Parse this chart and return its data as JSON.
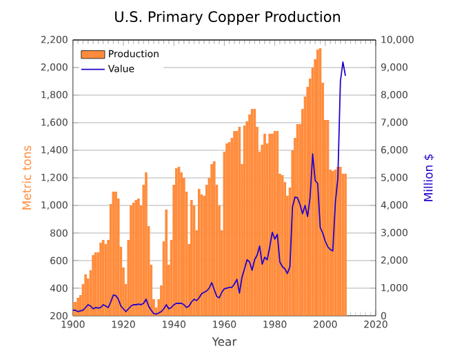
{
  "chart_data": {
    "type": "bar",
    "title": "U.S. Primary Copper Production",
    "xlabel": "Year",
    "ylabel": "Metric tons",
    "y2label": "Million $",
    "x": [
      1900,
      1901,
      1902,
      1903,
      1904,
      1905,
      1906,
      1907,
      1908,
      1909,
      1910,
      1911,
      1912,
      1913,
      1914,
      1915,
      1916,
      1917,
      1918,
      1919,
      1920,
      1921,
      1922,
      1923,
      1924,
      1925,
      1926,
      1927,
      1928,
      1929,
      1930,
      1931,
      1932,
      1933,
      1934,
      1935,
      1936,
      1937,
      1938,
      1939,
      1940,
      1941,
      1942,
      1943,
      1944,
      1945,
      1946,
      1947,
      1948,
      1949,
      1950,
      1951,
      1952,
      1953,
      1954,
      1955,
      1956,
      1957,
      1958,
      1959,
      1960,
      1961,
      1962,
      1963,
      1964,
      1965,
      1966,
      1967,
      1968,
      1969,
      1970,
      1971,
      1972,
      1973,
      1974,
      1975,
      1976,
      1977,
      1978,
      1979,
      1980,
      1981,
      1982,
      1983,
      1984,
      1985,
      1986,
      1987,
      1988,
      1989,
      1990,
      1991,
      1992,
      1993,
      1994,
      1995,
      1996,
      1997,
      1998,
      1999,
      2000,
      2001,
      2002,
      2003,
      2004,
      2005,
      2006,
      2007,
      2008
    ],
    "series": [
      {
        "name": "Production",
        "axis": "y",
        "color": "#ff8c3c",
        "values": [
          300,
          300,
          330,
          350,
          430,
          500,
          470,
          530,
          640,
          660,
          660,
          730,
          750,
          720,
          750,
          1010,
          1100,
          1100,
          1050,
          700,
          550,
          430,
          750,
          1000,
          1020,
          1040,
          1050,
          1000,
          1150,
          1240,
          850,
          570,
          320,
          260,
          320,
          420,
          740,
          970,
          570,
          750,
          1150,
          1270,
          1280,
          1240,
          1200,
          1100,
          720,
          1040,
          1000,
          820,
          1120,
          1080,
          1070,
          1150,
          1200,
          1300,
          1320,
          1150,
          1000,
          820,
          1390,
          1450,
          1460,
          1490,
          1540,
          1540,
          1570,
          1300,
          1580,
          1610,
          1660,
          1700,
          1700,
          1570,
          1390,
          1440,
          1520,
          1450,
          1520,
          1520,
          1540,
          1540,
          1230,
          1220,
          1170,
          1070,
          1130,
          1400,
          1490,
          1590,
          1590,
          1700,
          1790,
          1860,
          1920,
          2000,
          2060,
          2130,
          2140,
          1890,
          1620,
          1620,
          1260,
          1250,
          1260,
          1280,
          1280,
          1230,
          1230
        ]
      },
      {
        "name": "Value",
        "type": "line",
        "axis": "y2",
        "color": "#2200cc",
        "values": [
          200,
          200,
          150,
          180,
          200,
          300,
          400,
          350,
          250,
          300,
          280,
          300,
          400,
          350,
          300,
          500,
          750,
          730,
          600,
          350,
          250,
          150,
          250,
          350,
          400,
          400,
          420,
          400,
          450,
          600,
          350,
          200,
          80,
          60,
          100,
          150,
          250,
          400,
          250,
          300,
          400,
          450,
          450,
          450,
          400,
          300,
          350,
          500,
          600,
          550,
          650,
          800,
          850,
          900,
          1000,
          1200,
          950,
          700,
          650,
          850,
          980,
          1000,
          1030,
          1030,
          1150,
          1320,
          820,
          1400,
          1700,
          2030,
          1950,
          1650,
          2030,
          2200,
          2530,
          1870,
          2120,
          2030,
          2500,
          3030,
          2780,
          2950,
          1950,
          1780,
          1700,
          1530,
          1780,
          3950,
          4300,
          4280,
          4030,
          3700,
          4000,
          3600,
          4300,
          5870,
          4900,
          4800,
          3200,
          3000,
          2700,
          2500,
          2400,
          2350,
          4100,
          5000,
          8500,
          9200,
          8700
        ]
      }
    ],
    "xlim": [
      1900,
      2020
    ],
    "xticks": [
      1900,
      1920,
      1940,
      1960,
      1980,
      2000,
      2020
    ],
    "ylim": [
      200,
      2200
    ],
    "yticks": [
      200,
      400,
      600,
      800,
      {
        "value": 1000,
        "label": "1,000"
      },
      {
        "value": 1200,
        "label": "1,200"
      },
      {
        "value": 1400,
        "label": "1,400"
      },
      {
        "value": 1600,
        "label": "1,600"
      },
      {
        "value": 1800,
        "label": "1,800"
      },
      {
        "value": 2000,
        "label": "2,000"
      },
      {
        "value": 2200,
        "label": "2,200"
      }
    ],
    "y2lim": [
      0,
      10000
    ],
    "y2ticks": [
      0,
      {
        "value": 1000,
        "label": "1,000"
      },
      {
        "value": 2000,
        "label": "2,000"
      },
      {
        "value": 3000,
        "label": "3,000"
      },
      {
        "value": 4000,
        "label": "4,000"
      },
      {
        "value": 5000,
        "label": "5,000"
      },
      {
        "value": 6000,
        "label": "6,000"
      },
      {
        "value": 7000,
        "label": "7,000"
      },
      {
        "value": 8000,
        "label": "8,000"
      },
      {
        "value": 9000,
        "label": "9,000"
      },
      {
        "value": 10000,
        "label": "10,000"
      }
    ],
    "grid": "y",
    "legend": "top left"
  }
}
